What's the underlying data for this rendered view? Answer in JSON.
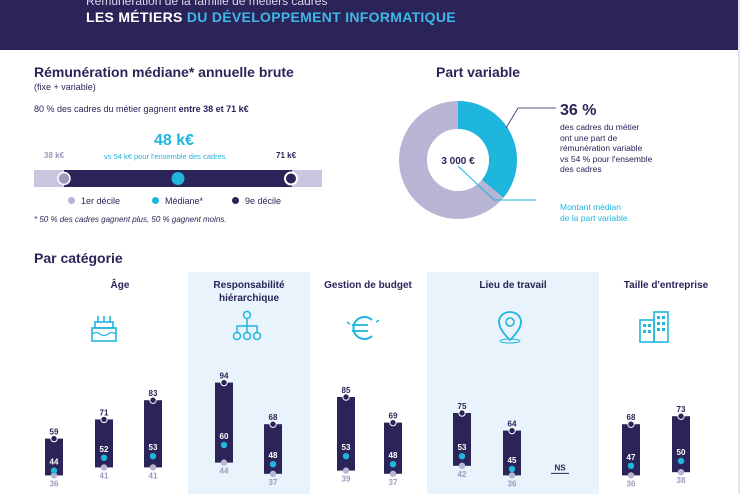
{
  "header": {
    "subtitle": "Rémunération de la famille de métiers cadres",
    "title_part1": "LES MÉTIERS",
    "title_part2": "DU DÉVELOPPEMENT INFORMATIQUE"
  },
  "colors": {
    "navy": "#2b2458",
    "cyan": "#1fb6de",
    "lavender": "#b7b5d3",
    "panel": "#e8f3fb"
  },
  "salary": {
    "title": "Rémunération médiane* annuelle brute",
    "subtitle": "(fixe + variable)",
    "range_text_prefix": "80 % des cadres du métier gagnent",
    "range_text_bold": "entre 38 et 71 k€",
    "median": "48 k€",
    "comparison": "vs 54 k€ pour l'ensemble des cadres",
    "low_label": "38 k€",
    "high_label": "71 k€",
    "legend_d1": "1er décile",
    "legend_median": "Médiane*",
    "legend_d9": "9e décile",
    "footnote": "* 50 % des cadres gagnent plus, 50 % gagnent moins."
  },
  "variable": {
    "title": "Part variable",
    "share_pct": 36,
    "pct_label": "36 %",
    "description": [
      "des cadres du métier",
      "ont une part de",
      "rémunération variable",
      "vs 54 % pour l'ensemble",
      "des cadres"
    ],
    "amount": "3 000 €",
    "amount_caption": [
      "Montant médian",
      "de la part variable"
    ]
  },
  "category_title": "Par catégorie",
  "chart_data": {
    "type": "range-bar",
    "title": "Par catégorie",
    "note": "Each bar spans 1er décile (bottom) to 9e décile (top), dot = médiane, in k€",
    "groups": [
      {
        "name": "Âge",
        "highlight": false,
        "bars": [
          {
            "d1": 36,
            "median": 44,
            "d9": 59
          },
          {
            "d1": 41,
            "median": 52,
            "d9": 71
          },
          {
            "d1": 41,
            "median": 53,
            "d9": 83
          }
        ]
      },
      {
        "name": "Responsabilité hiérarchique",
        "highlight": true,
        "bars": [
          {
            "d1": 44,
            "median": 60,
            "d9": 94
          },
          {
            "d1": 37,
            "median": 48,
            "d9": 68
          }
        ]
      },
      {
        "name": "Gestion de budget",
        "highlight": false,
        "bars": [
          {
            "d1": 39,
            "median": 53,
            "d9": 85
          },
          {
            "d1": 37,
            "median": 48,
            "d9": 69
          }
        ]
      },
      {
        "name": "Lieu de travail",
        "highlight": true,
        "bars": [
          {
            "d1": 42,
            "median": 53,
            "d9": 75
          },
          {
            "d1": 36,
            "median": 45,
            "d9": 64
          }
        ],
        "ns_label": "NS"
      },
      {
        "name": "Taille d'entreprise",
        "highlight": false,
        "bars": [
          {
            "d1": 36,
            "median": 47,
            "d9": 68
          },
          {
            "d1": 38,
            "median": 50,
            "d9": 73
          }
        ]
      }
    ]
  }
}
